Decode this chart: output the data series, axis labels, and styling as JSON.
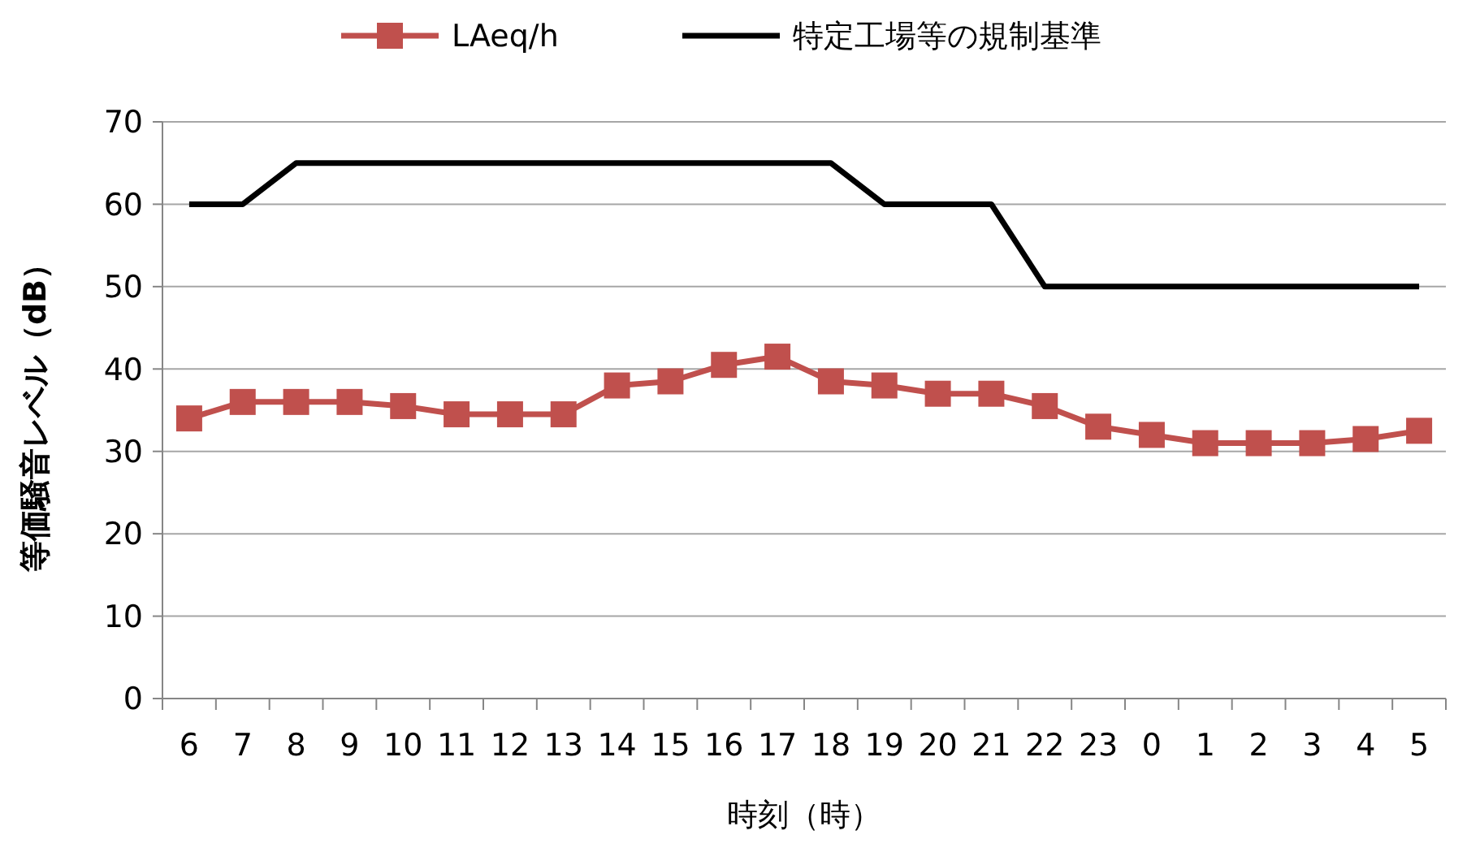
{
  "chart_data": {
    "type": "line",
    "xlabel": "時刻（時）",
    "ylabel": "等価騒音レベル（dB）",
    "categories": [
      "6",
      "7",
      "8",
      "9",
      "10",
      "11",
      "12",
      "13",
      "14",
      "15",
      "16",
      "17",
      "18",
      "19",
      "20",
      "21",
      "22",
      "23",
      "0",
      "1",
      "2",
      "3",
      "4",
      "5"
    ],
    "series": [
      {
        "name": "LAeq/h",
        "color": "#c0504d",
        "marker": "square",
        "values": [
          34,
          36,
          36,
          36,
          35.5,
          34.5,
          34.5,
          34.5,
          38,
          38.5,
          40.5,
          41.5,
          38.5,
          38,
          37,
          37,
          35.5,
          33,
          32,
          31,
          31,
          31,
          31.5,
          32.5
        ]
      },
      {
        "name": "特定工場等の規制基準",
        "color": "#000000",
        "marker": "none",
        "values": [
          60,
          60,
          65,
          65,
          65,
          65,
          65,
          65,
          65,
          65,
          65,
          65,
          65,
          60,
          60,
          60,
          50,
          50,
          50,
          50,
          50,
          50,
          50,
          50
        ]
      }
    ],
    "ylim": [
      0,
      70
    ],
    "yticks": [
      0,
      10,
      20,
      30,
      40,
      50,
      60,
      70
    ],
    "grid": "y",
    "legend": "top"
  }
}
